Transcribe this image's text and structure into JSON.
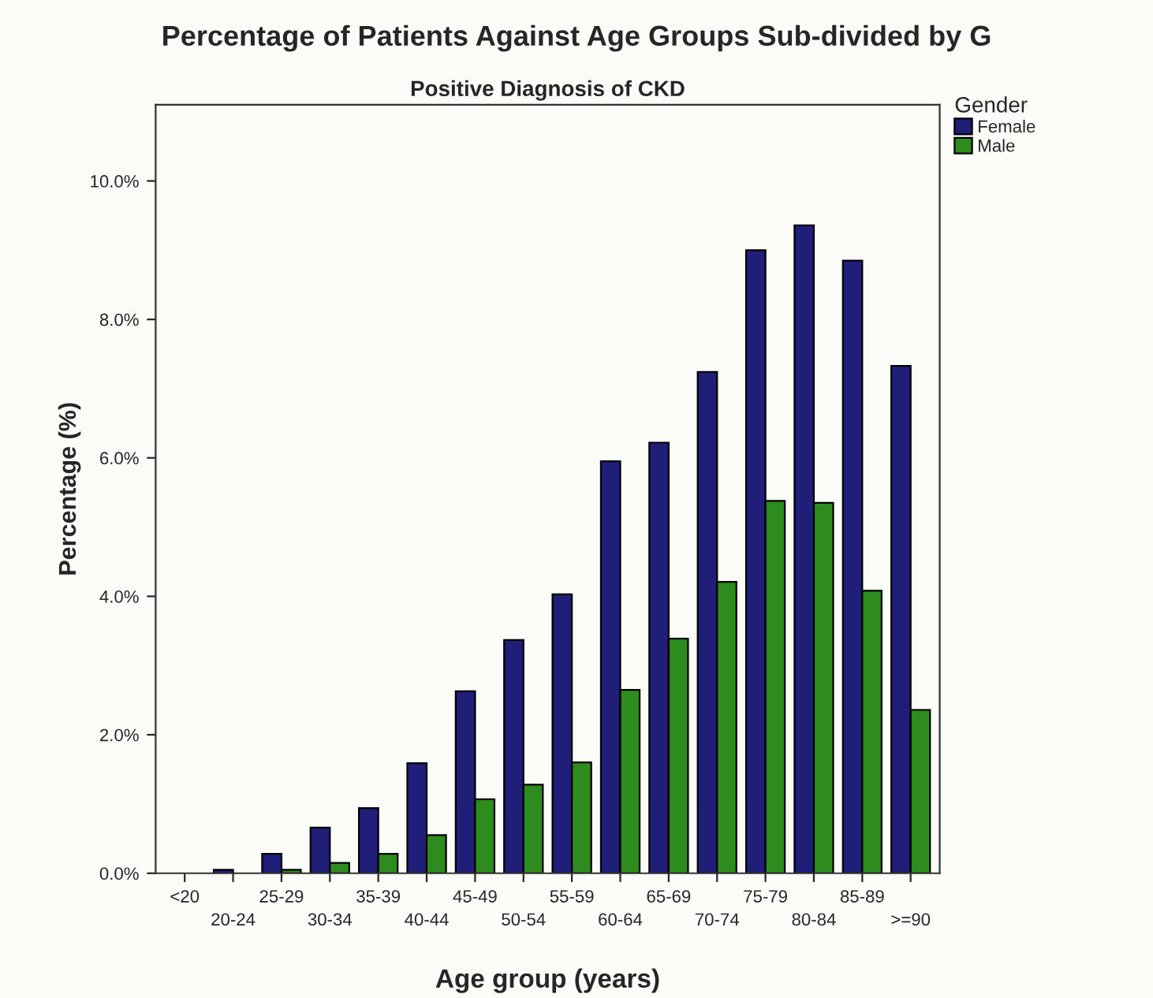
{
  "chart_data": {
    "type": "bar",
    "title": "Percentage of Patients Against Age Groups Sub-divided by G",
    "subtitle": "Positive Diagnosis of CKD",
    "xlabel": "Age group (years)",
    "ylabel": "Percentage (%)",
    "legend_title": "Gender",
    "categories": [
      "<20",
      "20-24",
      "25-29",
      "30-34",
      "35-39",
      "40-44",
      "45-49",
      "50-54",
      "55-59",
      "60-64",
      "65-69",
      "70-74",
      "75-79",
      "80-84",
      "85-89",
      ">=90"
    ],
    "series": [
      {
        "name": "Female",
        "color": "#1f1f7a",
        "values": [
          0,
          0.05,
          0.28,
          0.66,
          0.94,
          1.59,
          2.63,
          3.37,
          4.03,
          5.95,
          6.22,
          7.24,
          9.0,
          9.36,
          8.85,
          7.33
        ]
      },
      {
        "name": "Male",
        "color": "#2e8b1e",
        "values": [
          0,
          0,
          0.05,
          0.15,
          0.28,
          0.55,
          1.07,
          1.28,
          1.6,
          2.65,
          3.39,
          4.21,
          5.38,
          5.35,
          4.08,
          2.36
        ]
      }
    ],
    "ylim": [
      0,
      11.1
    ],
    "yticks": [
      {
        "value": 0,
        "label": "0.0%"
      },
      {
        "value": 2,
        "label": "2.0%"
      },
      {
        "value": 4,
        "label": "4.0%"
      },
      {
        "value": 6,
        "label": "6.0%"
      },
      {
        "value": 8,
        "label": "8.0%"
      },
      {
        "value": 10,
        "label": "10.0%"
      }
    ],
    "grid": false,
    "legend": "top right"
  }
}
